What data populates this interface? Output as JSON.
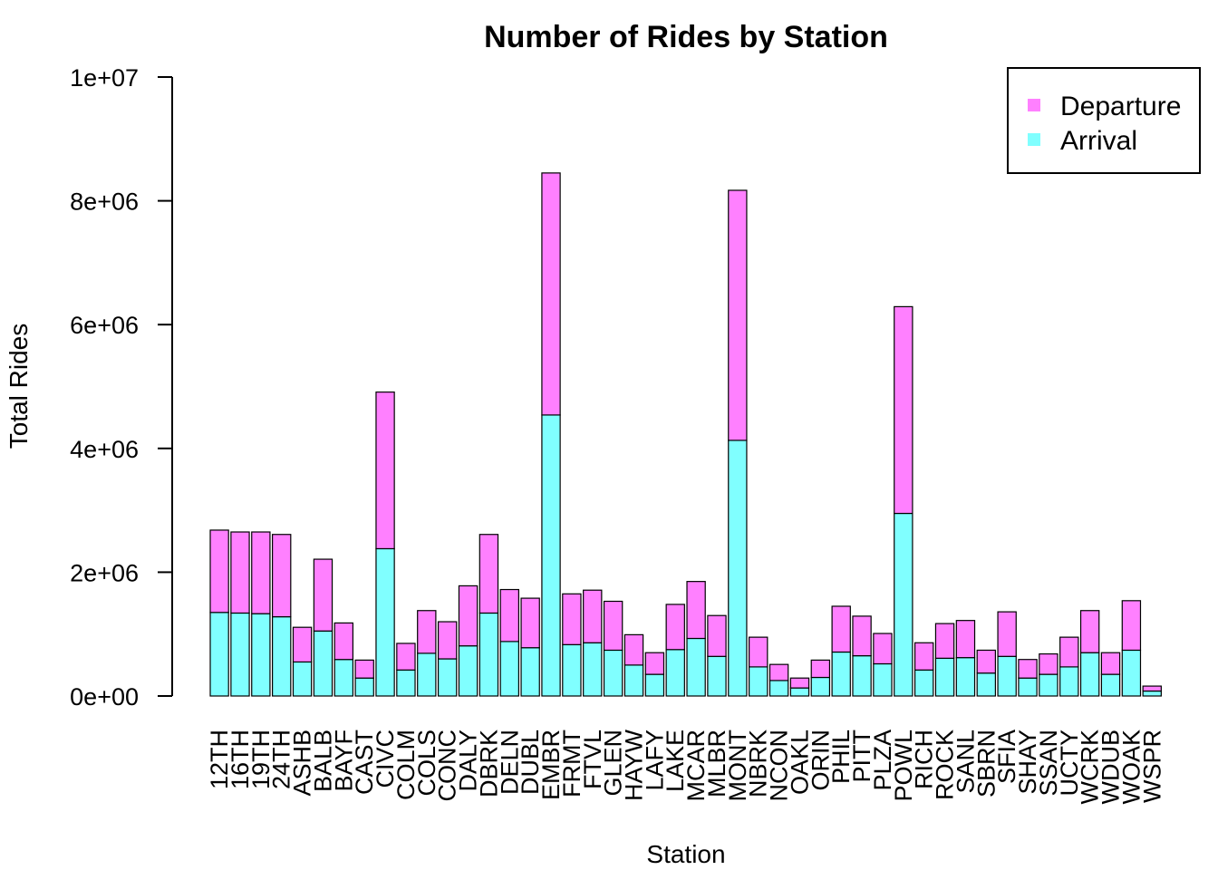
{
  "chart_data": {
    "type": "bar",
    "stacked": true,
    "title": "Number of Rides by Station",
    "xlabel": "Station",
    "ylabel": "Total Rides",
    "ylim": [
      0,
      10000000
    ],
    "yticks": [
      0,
      2000000,
      4000000,
      6000000,
      8000000,
      10000000
    ],
    "ytick_labels": [
      "0e+00",
      "2e+06",
      "4e+06",
      "6e+06",
      "8e+06",
      "1e+07"
    ],
    "legend_position": "top-right",
    "categories": [
      "12TH",
      "16TH",
      "19TH",
      "24TH",
      "ASHB",
      "BALB",
      "BAYF",
      "CAST",
      "CIVC",
      "COLM",
      "COLS",
      "CONC",
      "DALY",
      "DBRK",
      "DELN",
      "DUBL",
      "EMBR",
      "FRMT",
      "FTVL",
      "GLEN",
      "HAYW",
      "LAFY",
      "LAKE",
      "MCAR",
      "MLBR",
      "MONT",
      "NBRK",
      "NCON",
      "OAKL",
      "ORIN",
      "PHIL",
      "PITT",
      "PLZA",
      "POWL",
      "RICH",
      "ROCK",
      "SANL",
      "SBRN",
      "SFIA",
      "SHAY",
      "SSAN",
      "UCTY",
      "WCRK",
      "WDUB",
      "WOAK",
      "WSPR"
    ],
    "series": [
      {
        "name": "Arrival",
        "color": "#80FFFF",
        "values": [
          1350000,
          1340000,
          1330000,
          1280000,
          550000,
          1050000,
          590000,
          290000,
          2380000,
          420000,
          690000,
          600000,
          810000,
          1340000,
          880000,
          780000,
          4540000,
          830000,
          860000,
          740000,
          500000,
          350000,
          750000,
          930000,
          640000,
          4130000,
          470000,
          250000,
          130000,
          300000,
          710000,
          650000,
          520000,
          2950000,
          420000,
          610000,
          620000,
          370000,
          640000,
          290000,
          350000,
          470000,
          700000,
          350000,
          740000,
          80000
        ]
      },
      {
        "name": "Departure",
        "color": "#FF80FF",
        "values": [
          1330000,
          1310000,
          1320000,
          1330000,
          560000,
          1160000,
          590000,
          290000,
          2530000,
          430000,
          690000,
          600000,
          970000,
          1270000,
          840000,
          800000,
          3910000,
          820000,
          850000,
          790000,
          490000,
          350000,
          730000,
          920000,
          660000,
          4040000,
          480000,
          260000,
          160000,
          280000,
          740000,
          640000,
          490000,
          3340000,
          440000,
          560000,
          600000,
          370000,
          720000,
          300000,
          330000,
          480000,
          680000,
          350000,
          800000,
          80000
        ]
      }
    ]
  }
}
